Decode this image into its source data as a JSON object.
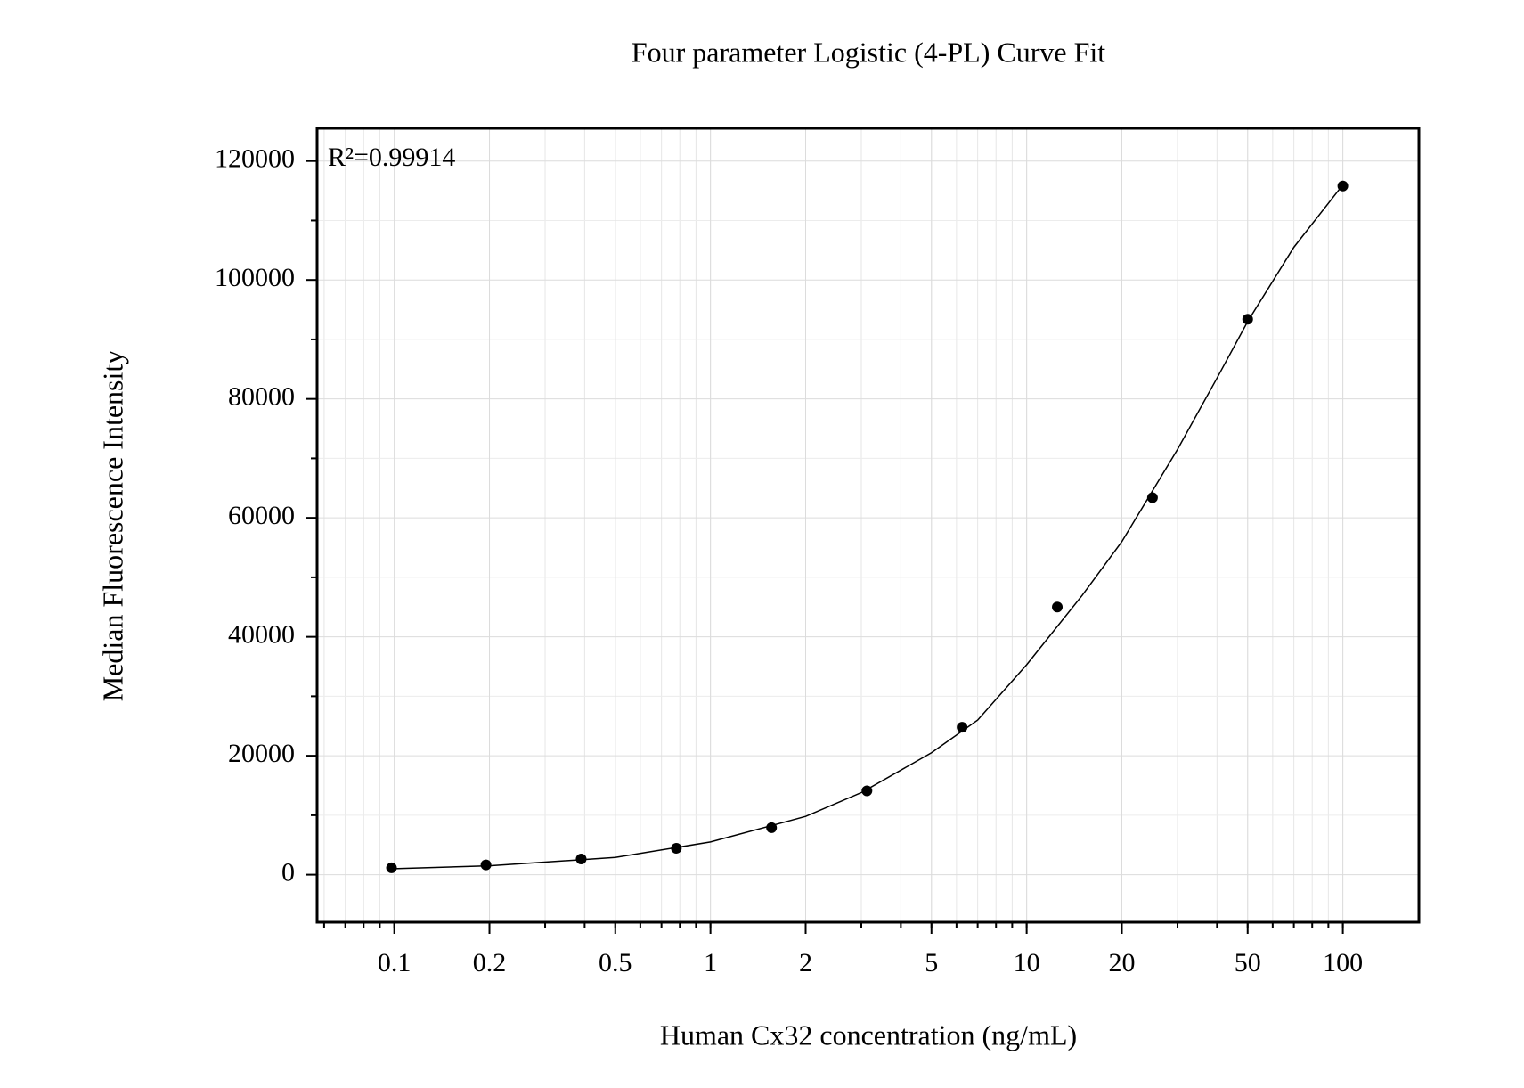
{
  "chart_data": {
    "type": "scatter",
    "title": "Four parameter Logistic (4-PL) Curve Fit",
    "xlabel": "Human Cx32 concentration (ng/mL)",
    "ylabel": "Median Fluorescence Intensity",
    "annotation": "R²=0.99914",
    "x": [
      0.098,
      0.195,
      0.39,
      0.78,
      1.56,
      3.125,
      6.25,
      12.5,
      25,
      50,
      100
    ],
    "series": [
      {
        "color": "#000000",
        "values": [
          1150,
          1640,
          2630,
          4430,
          7900,
          14100,
          24800,
          45000,
          63400,
          93400,
          115800
        ]
      }
    ],
    "curve": {
      "color": "#000000",
      "x": [
        0.1,
        0.2,
        0.5,
        1,
        2,
        3,
        5,
        7,
        10,
        15,
        20,
        30,
        40,
        50,
        70,
        100
      ],
      "values": [
        1000,
        1500,
        2900,
        5500,
        9800,
        13800,
        20500,
        26000,
        35300,
        47000,
        56000,
        71500,
        83500,
        93000,
        105500,
        116000
      ]
    },
    "xscale": "log",
    "xlim": [
      0.057,
      174
    ],
    "xticks": [
      0.1,
      0.2,
      0.5,
      1,
      2,
      5,
      10,
      20,
      50,
      100
    ],
    "ylim": [
      -8000,
      125500
    ],
    "yticks": [
      0,
      20000,
      40000,
      60000,
      80000,
      100000,
      120000
    ],
    "grid": true
  }
}
